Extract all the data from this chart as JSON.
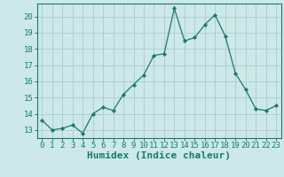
{
  "x": [
    0,
    1,
    2,
    3,
    4,
    5,
    6,
    7,
    8,
    9,
    10,
    11,
    12,
    13,
    14,
    15,
    16,
    17,
    18,
    19,
    20,
    21,
    22,
    23
  ],
  "y": [
    13.6,
    13.0,
    13.1,
    13.3,
    12.8,
    14.0,
    14.4,
    14.2,
    15.2,
    15.8,
    16.4,
    17.6,
    17.7,
    20.5,
    18.5,
    18.7,
    19.5,
    20.1,
    18.8,
    16.5,
    15.5,
    14.3,
    14.2,
    14.5
  ],
  "line_color": "#1a7a6e",
  "marker": "D",
  "marker_size": 2.2,
  "bg_color": "#cce8e8",
  "grid_color": "#b0d0d0",
  "axis_color": "#1a7a6e",
  "xlabel": "Humidex (Indice chaleur)",
  "ylim": [
    12.5,
    20.8
  ],
  "xlim": [
    -0.5,
    23.5
  ],
  "yticks": [
    13,
    14,
    15,
    16,
    17,
    18,
    19,
    20
  ],
  "xticks": [
    0,
    1,
    2,
    3,
    4,
    5,
    6,
    7,
    8,
    9,
    10,
    11,
    12,
    13,
    14,
    15,
    16,
    17,
    18,
    19,
    20,
    21,
    22,
    23
  ],
  "tick_fontsize": 6.5,
  "xlabel_fontsize": 8
}
